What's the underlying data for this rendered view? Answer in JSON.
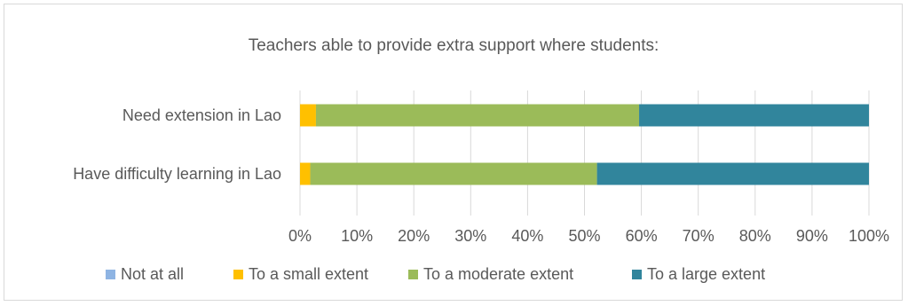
{
  "chart_data": {
    "type": "bar",
    "orientation": "horizontal",
    "stacked": "percent",
    "title": "Teachers able to provide extra support where students:",
    "categories": [
      "Need extension in Lao",
      "Have difficulty learning in Lao"
    ],
    "series": [
      {
        "name": "Not at all",
        "color": "#8eb4e3",
        "values": [
          0,
          0
        ]
      },
      {
        "name": "To a small extent",
        "color": "#ffc000",
        "values": [
          2.8,
          1.8
        ]
      },
      {
        "name": "To a moderate extent",
        "color": "#9bbb59",
        "values": [
          56.8,
          50.4
        ]
      },
      {
        "name": "To a large extent",
        "color": "#31859c",
        "values": [
          40.4,
          47.8
        ]
      }
    ],
    "xlim": [
      0,
      100
    ],
    "xticks": [
      "0%",
      "10%",
      "20%",
      "30%",
      "40%",
      "50%",
      "60%",
      "70%",
      "80%",
      "90%",
      "100%"
    ],
    "grid": true,
    "legend_position": "bottom"
  }
}
